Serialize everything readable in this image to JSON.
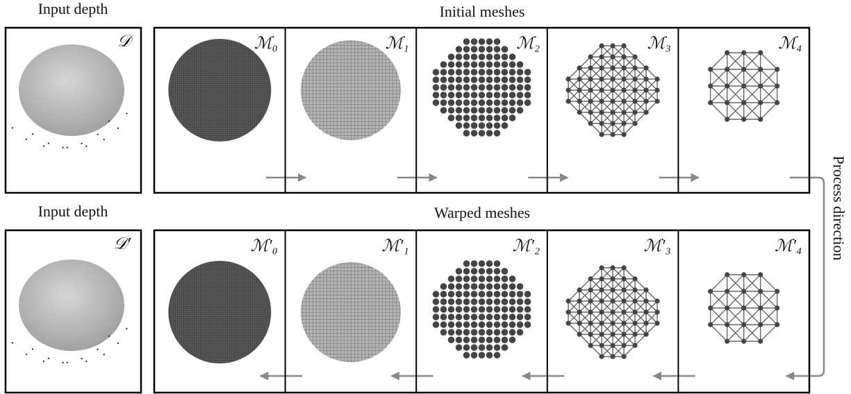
{
  "top": {
    "input_label": "Input depth",
    "depth_label": "𝒟",
    "row_title": "Initial meshes",
    "meshes": [
      "ℳ₀",
      "ℳ₁",
      "ℳ₂",
      "ℳ₃",
      "ℳ₄"
    ]
  },
  "bottom": {
    "input_label": "Input depth",
    "depth_label": "𝒟′",
    "row_title": "Warped meshes",
    "meshes": [
      "ℳ′₀",
      "ℳ′₁",
      "ℳ′₂",
      "ℳ′₃",
      "ℳ′₄"
    ]
  },
  "process_label": "Process direction"
}
